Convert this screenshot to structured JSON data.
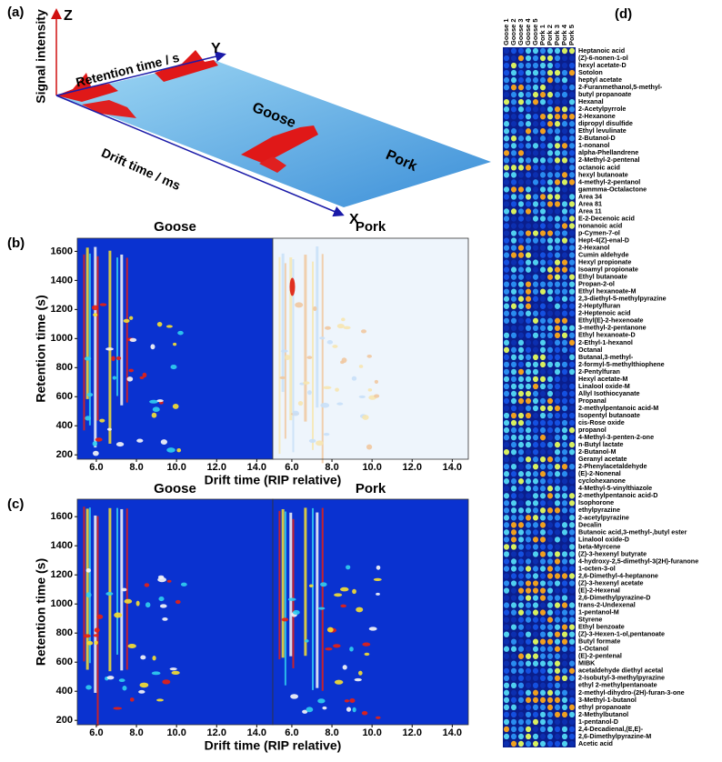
{
  "chart_data": [
    {
      "type": "surface3d",
      "panel_label": "(a)",
      "z_axis": "Z",
      "y_axis": "Y",
      "x_axis": "X",
      "z_label": "Signal intensity",
      "y_label": "Retention time / s",
      "x_label": "Drift time / ms",
      "groups": [
        "Goose",
        "Pork"
      ]
    },
    {
      "type": "heatmap",
      "panel_label": "(b)",
      "subplots": [
        "Goose",
        "Pork"
      ],
      "xlabel": "Drift time (RIP relative)",
      "ylabel": "Retention time (s)",
      "xlim": [
        5.05,
        14.8
      ],
      "ylim": [
        170,
        1690
      ],
      "xticks": [
        {
          "value": 6,
          "label": "6.0"
        },
        {
          "value": 8,
          "label": "8.0"
        },
        {
          "value": 10,
          "label": "10.0"
        },
        {
          "value": 12,
          "label": "12.0"
        },
        {
          "value": 14,
          "label": "14.0"
        }
      ],
      "yticks": [
        200,
        400,
        600,
        800,
        1000,
        1200,
        1400,
        1600
      ]
    },
    {
      "type": "heatmap",
      "panel_label": "(c)",
      "subplots": [
        "Goose",
        "Pork"
      ],
      "xlabel": "Drift time (RIP relative)",
      "ylabel": "Retention time (s)",
      "xlim": [
        5.05,
        14.8
      ],
      "ylim": [
        170,
        1720
      ],
      "xticks": [
        {
          "value": 6,
          "label": "6.0"
        },
        {
          "value": 8,
          "label": "8.0"
        },
        {
          "value": 10,
          "label": "10.0"
        },
        {
          "value": 12,
          "label": "12.0"
        },
        {
          "value": 14,
          "label": "14.0"
        }
      ],
      "yticks": [
        200,
        400,
        600,
        800,
        1000,
        1200,
        1400,
        1600
      ]
    },
    {
      "type": "fingerprint",
      "panel_label": "(d)",
      "samples": [
        "Goose 1",
        "Goose 2",
        "Goose 3",
        "Goose 4",
        "Goose 5",
        "Pork 1",
        "Pork 2",
        "Pork 3",
        "Pork 4",
        "Pork 5"
      ],
      "compounds": [
        "Heptanoic acid",
        "(Z)-6-nonen-1-ol",
        "hexyl acetate-D",
        "Sotolon",
        "heptyl acetate",
        "2-Furanmethanol,5-methyl-",
        "butyl propanoate",
        "Hexanal",
        "2-Acetylpyrrole",
        "2-Hexanone",
        "dipropyl disulfide",
        "Ethyl levulinate",
        "2-Butanol-D",
        "1-nonanol",
        "alpha-Phellandrene",
        "2-Methyl-2-pentenal",
        "octanoic acid",
        "hexyl butanoate",
        "4-methyl-2-pentanol",
        "gammma-Octalactone",
        "Area 34",
        "Area 81",
        "Area 11",
        "E-2-Decenoic acid",
        "nonanoic acid",
        "p-Cymen-7-ol",
        "Hept-4(Z)-enal-D",
        "2-Hexanol",
        "Cumin aldehyde",
        "Hexyl propionate",
        "Isoamyl propionate",
        "Ethyl butanoate",
        "Propan-2-ol",
        "Ethyl hexanoate-M",
        "2,3-diethyl-5-methylpyrazine",
        "2-Heptylfuran",
        "2-Heptenoic acid",
        "Ethyl(E)-2-hexenoate",
        "3-methyl-2-pentanone",
        "Ethyl hexanoate-D",
        "2-Ethyl-1-hexanol",
        "Octanal",
        "Butanal,3-methyl-",
        "2-formyl-5-methylthiophene",
        "2-Pentylfuran",
        "Hexyl acetate-M",
        "Linalool oxide-M",
        "Allyl Isothiocyanate",
        "Propanal",
        "2-methylpentanoic acid-M",
        "Isopentyl butanoate",
        "cis-Rose oxide",
        "propanol",
        "4-Methyl-3-penten-2-one",
        "n-Butyl lactate",
        "2-Butanol-M",
        "Geranyl acetate",
        "2-Phenylacetaldehyde",
        "(E)-2-Nonenal",
        "cyclohexanone",
        "4-Methyl-5-vinylthiazole",
        "2-methylpentanoic acid-D",
        "Isophorone",
        "ethylpyrazine",
        "2-acetylpyrazine",
        "Decalin",
        "Butanoic acid,3-methyl-,butyl ester",
        "Linalool oxide-D",
        "beta-Myrcene",
        "(Z)-3-hexenyl butyrate",
        "4-hydroxy-2,5-dimethyl-3(2H)-furanone",
        "1-octen-3-ol",
        "2,6-Dimethyl-4-heptanone",
        "(Z)-3-hexenyl acetate",
        "(E)-2-Hexenal",
        "2,6-Dimethylpyrazine-D",
        "trans-2-Undexenal",
        "1-pentanol-M",
        "Styrene",
        "Ethyl benzoate",
        "(Z)-3-Hexen-1-ol,pentanoate",
        "Butyl formate",
        "1-Octanol",
        "(E)-2-pentenal",
        "MIBK",
        "acetaldehyde diethyl acetal",
        "2-Isobutyl-3-methylpyrazine",
        "ethyl 2-methylpentanoate",
        "2-methyl-dihydro-(2H)-furan-3-one",
        "3-Methyl-1-butanol",
        "ethyl propanoate",
        "2-Methylbutanol",
        "1-pentanol-D",
        "2,4-Decadienal,(E,E)-",
        "2,6-Dimethylpyrazine-M",
        "Acetic acid"
      ]
    }
  ]
}
